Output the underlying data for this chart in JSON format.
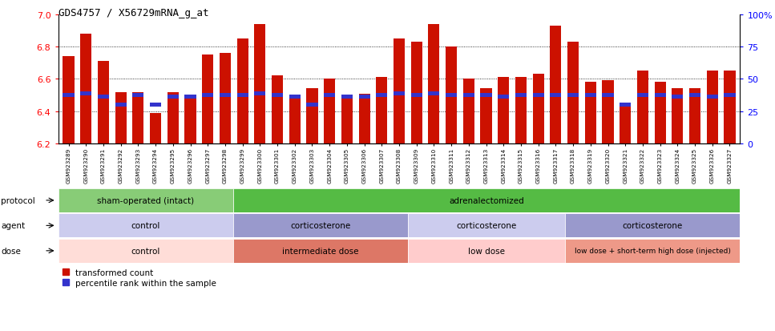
{
  "title": "GDS4757 / X56729mRNA_g_at",
  "samples": [
    "GSM923289",
    "GSM923290",
    "GSM923291",
    "GSM923292",
    "GSM923293",
    "GSM923294",
    "GSM923295",
    "GSM923296",
    "GSM923297",
    "GSM923298",
    "GSM923299",
    "GSM923300",
    "GSM923301",
    "GSM923302",
    "GSM923303",
    "GSM923304",
    "GSM923305",
    "GSM923306",
    "GSM923307",
    "GSM923308",
    "GSM923309",
    "GSM923310",
    "GSM923311",
    "GSM923312",
    "GSM923313",
    "GSM923314",
    "GSM923315",
    "GSM923316",
    "GSM923317",
    "GSM923318",
    "GSM923319",
    "GSM923320",
    "GSM923321",
    "GSM923322",
    "GSM923323",
    "GSM923324",
    "GSM923325",
    "GSM923326",
    "GSM923327"
  ],
  "bar_values": [
    6.74,
    6.88,
    6.71,
    6.52,
    6.52,
    6.39,
    6.52,
    6.48,
    6.75,
    6.76,
    6.85,
    6.94,
    6.62,
    6.5,
    6.54,
    6.6,
    6.5,
    6.51,
    6.61,
    6.85,
    6.83,
    6.94,
    6.8,
    6.6,
    6.54,
    6.61,
    6.61,
    6.63,
    6.93,
    6.83,
    6.58,
    6.59,
    6.43,
    6.65,
    6.58,
    6.54,
    6.54,
    6.65,
    6.65
  ],
  "percentile_values": [
    6.5,
    6.51,
    6.49,
    6.44,
    6.5,
    6.44,
    6.49,
    6.49,
    6.5,
    6.5,
    6.5,
    6.51,
    6.5,
    6.49,
    6.44,
    6.5,
    6.49,
    6.49,
    6.5,
    6.51,
    6.5,
    6.51,
    6.5,
    6.5,
    6.5,
    6.49,
    6.5,
    6.5,
    6.5,
    6.5,
    6.5,
    6.5,
    6.44,
    6.5,
    6.5,
    6.49,
    6.5,
    6.49,
    6.5
  ],
  "ylim": [
    6.2,
    7.0
  ],
  "yticks_left": [
    6.2,
    6.4,
    6.6,
    6.8,
    7.0
  ],
  "yticks_right_pct": [
    0,
    25,
    50,
    75,
    100
  ],
  "yticks_right_labels": [
    "0",
    "25",
    "50",
    "75",
    "100%"
  ],
  "bar_color": "#CC1100",
  "percentile_color": "#3333CC",
  "protocol_groups": [
    {
      "label": "sham-operated (intact)",
      "start": 0,
      "end": 10,
      "color": "#88CC77"
    },
    {
      "label": "adrenalectomized",
      "start": 10,
      "end": 39,
      "color": "#55BB44"
    }
  ],
  "agent_groups": [
    {
      "label": "control",
      "start": 0,
      "end": 10,
      "color": "#CCCCEE"
    },
    {
      "label": "corticosterone",
      "start": 10,
      "end": 20,
      "color": "#9999CC"
    },
    {
      "label": "corticosterone",
      "start": 20,
      "end": 29,
      "color": "#CCCCEE"
    },
    {
      "label": "corticosterone",
      "start": 29,
      "end": 39,
      "color": "#9999CC"
    }
  ],
  "dose_groups": [
    {
      "label": "control",
      "start": 0,
      "end": 10,
      "color": "#FFDDD8"
    },
    {
      "label": "intermediate dose",
      "start": 10,
      "end": 20,
      "color": "#DD7766"
    },
    {
      "label": "low dose",
      "start": 20,
      "end": 29,
      "color": "#FFCCCC"
    },
    {
      "label": "low dose + short-term high dose (injected)",
      "start": 29,
      "end": 39,
      "color": "#EE9988"
    }
  ],
  "row_labels": [
    "protocol",
    "agent",
    "dose"
  ],
  "legend_items": [
    {
      "label": "transformed count",
      "color": "#CC1100"
    },
    {
      "label": "percentile rank within the sample",
      "color": "#3333CC"
    }
  ]
}
